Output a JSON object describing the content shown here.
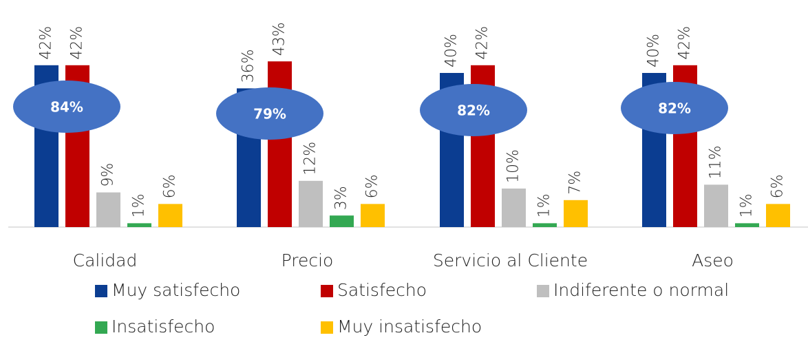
{
  "chart_data": {
    "type": "bar",
    "categories": [
      "Calidad",
      "Precio",
      "Servicio al Cliente",
      "Aseo"
    ],
    "series": [
      {
        "name": "Muy satisfecho",
        "color": "#0b3d91",
        "values": [
          42,
          36,
          40,
          40
        ],
        "value_labels": [
          "42%",
          "36%",
          "40%",
          "40%"
        ]
      },
      {
        "name": "Satisfecho",
        "color": "#c00000",
        "values": [
          42,
          43,
          42,
          42
        ],
        "value_labels": [
          "42%",
          "43%",
          "42%",
          "42%"
        ]
      },
      {
        "name": "Indiferente o normal",
        "color": "#bfbfbf",
        "values": [
          9,
          12,
          10,
          11
        ],
        "value_labels": [
          "9%",
          "12%",
          "10%",
          "11%"
        ]
      },
      {
        "name": "Insatisfecho",
        "color": "#33a852",
        "values": [
          1,
          3,
          1,
          1
        ],
        "value_labels": [
          "1%",
          "3%",
          "1%",
          "1%"
        ]
      },
      {
        "name": "Muy insatisfecho",
        "color": "#ffc000",
        "values": [
          6,
          6,
          7,
          6
        ],
        "value_labels": [
          "6%",
          "6%",
          "7%",
          "6%"
        ]
      }
    ],
    "annotations": [
      {
        "value": 84,
        "label": "84%"
      },
      {
        "value": 79,
        "label": "79%"
      },
      {
        "value": 82,
        "label": "82%"
      },
      {
        "value": 82,
        "label": "82%"
      }
    ],
    "annotation_color": "#4472c4"
  }
}
